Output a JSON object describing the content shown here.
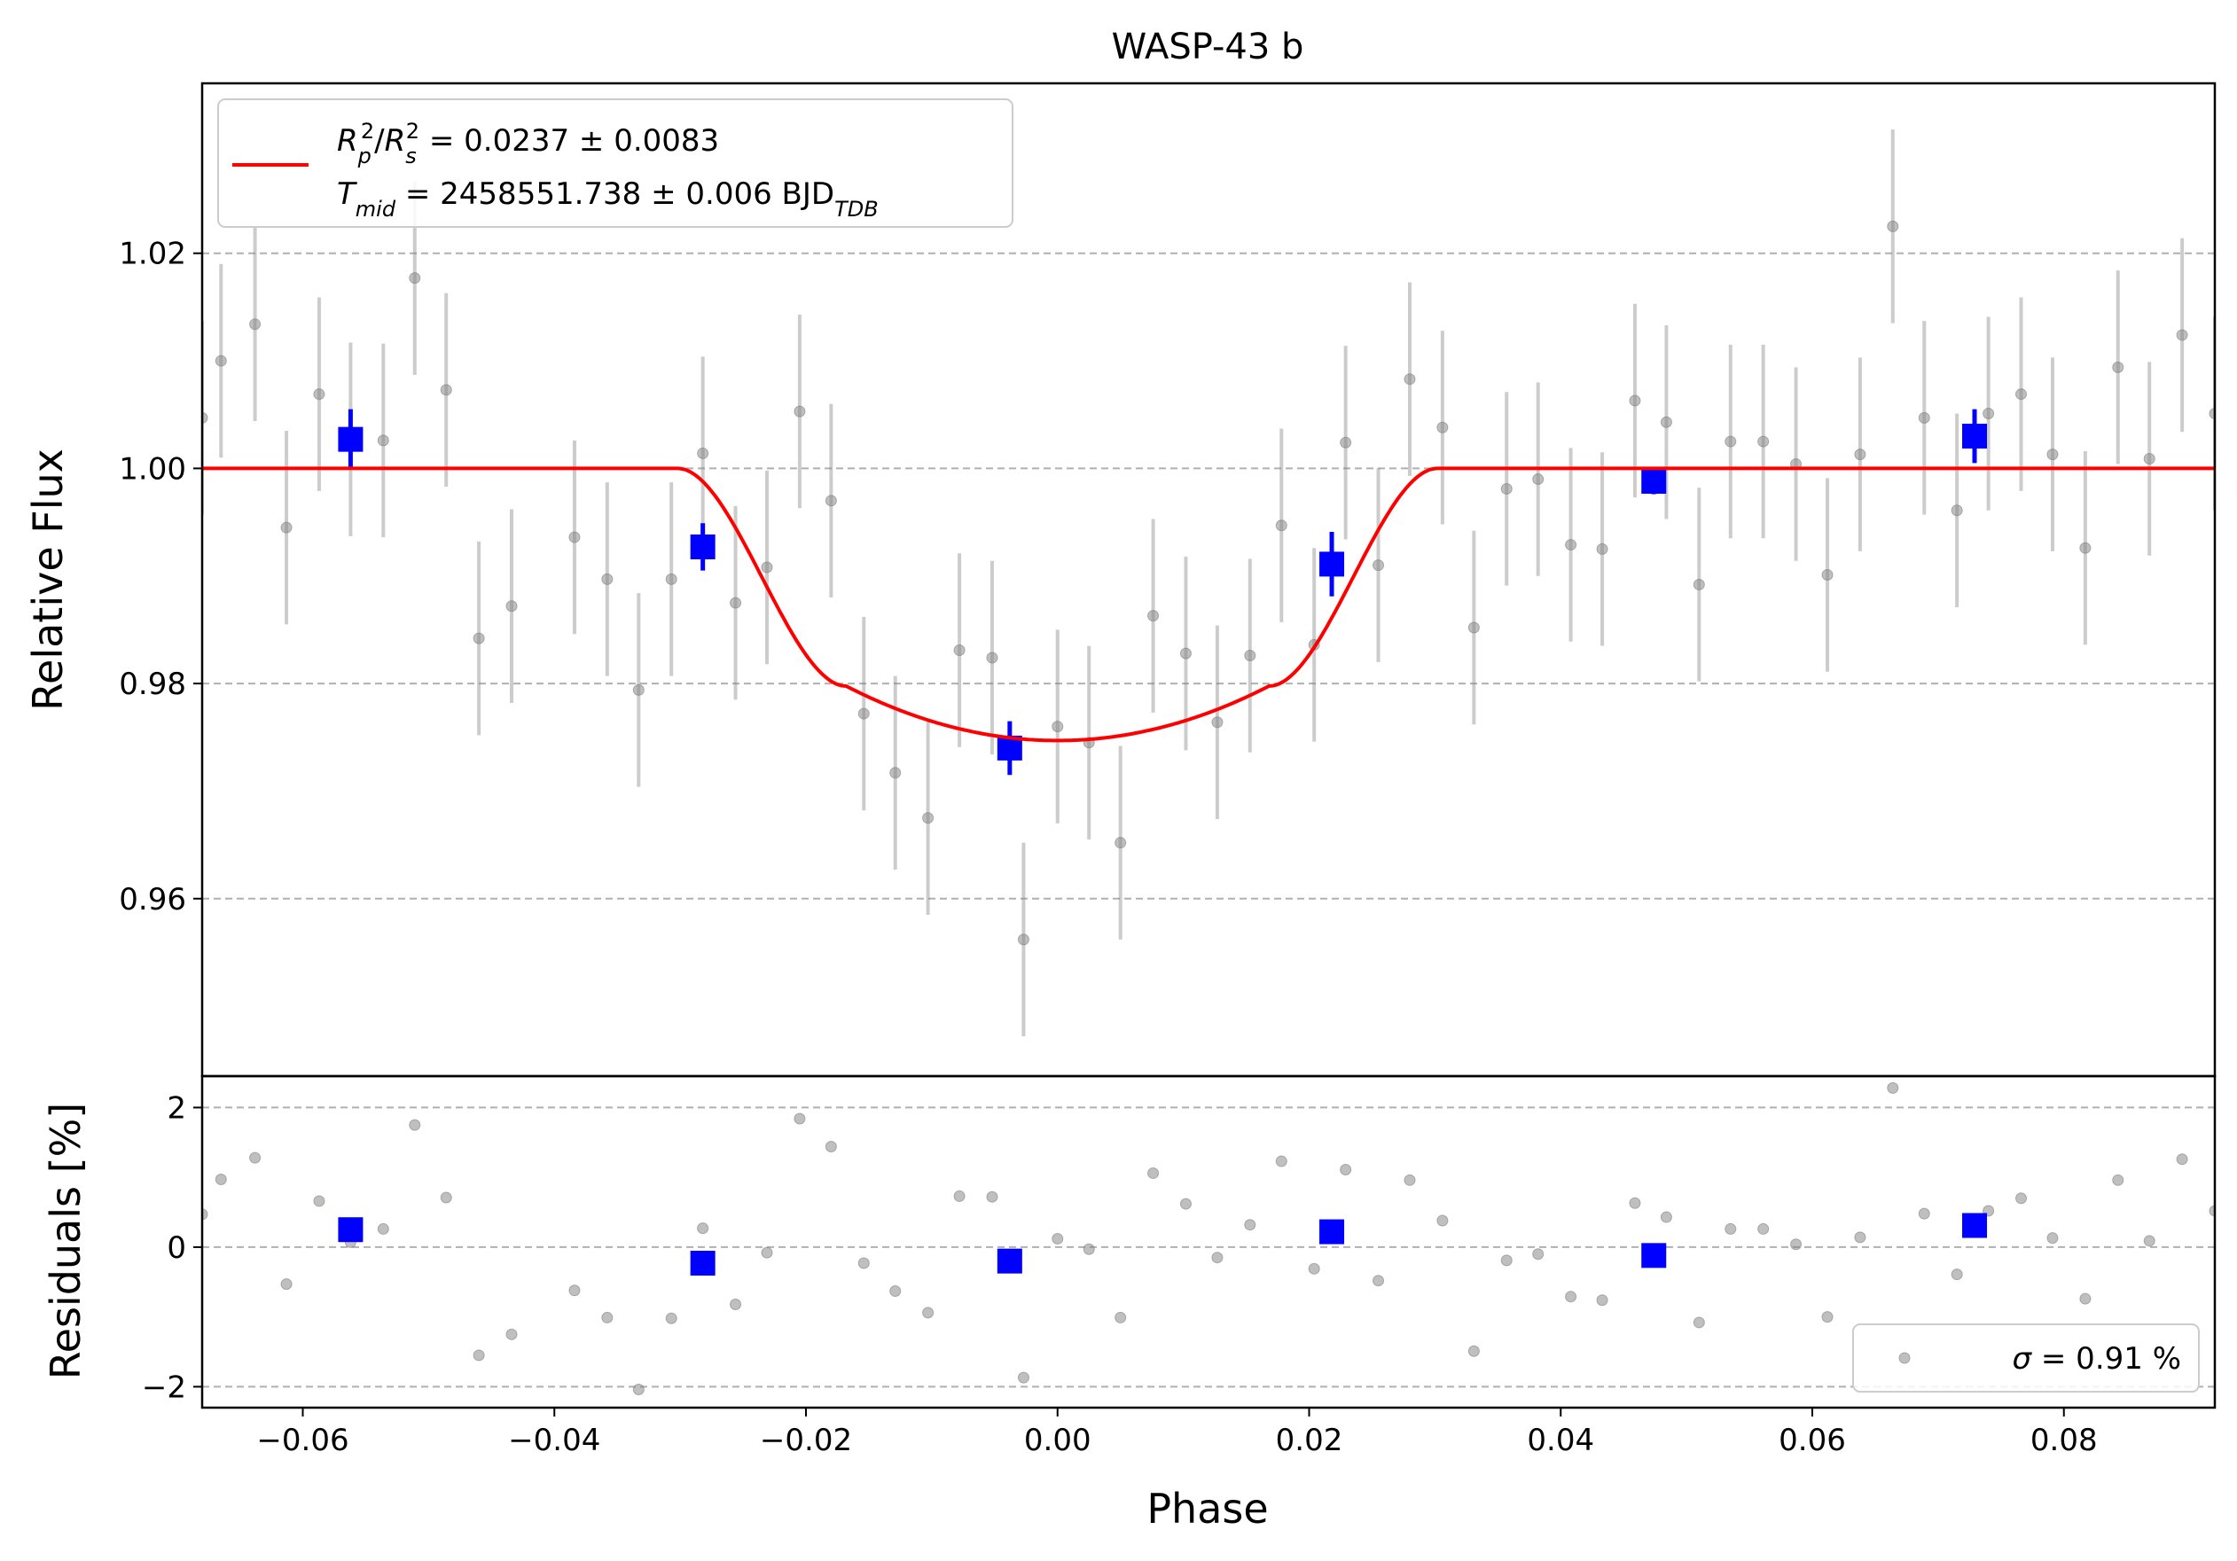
{
  "chart_data": {
    "type": "scatter",
    "title": "WASP-43 b",
    "xlabel": "Phase",
    "xlim": [
      -0.068,
      0.092
    ],
    "xticks": [
      -0.06,
      -0.04,
      -0.02,
      0.0,
      0.02,
      0.04,
      0.06,
      0.08
    ],
    "xtick_labels": [
      "−0.06",
      "−0.04",
      "−0.02",
      "0.00",
      "0.02",
      "0.04",
      "0.06",
      "0.08"
    ],
    "top_panel": {
      "ylabel": "Relative Flux",
      "ylim": [
        0.9435,
        1.0358
      ],
      "yticks": [
        0.96,
        0.98,
        1.0,
        1.02
      ],
      "ytick_labels": [
        "0.96",
        "0.98",
        "1.00",
        "1.02"
      ],
      "grid": "horizontal dashed",
      "data": {
        "color": "#808080",
        "points": [
          [
            -0.068,
            1.0047,
            0.009
          ],
          [
            -0.0665,
            1.01,
            0.009
          ],
          [
            -0.0638,
            1.0134,
            0.009
          ],
          [
            -0.0613,
            0.9945,
            0.009
          ],
          [
            -0.0587,
            1.0069,
            0.009
          ],
          [
            -0.0562,
            1.0027,
            0.009
          ],
          [
            -0.0536,
            1.0026,
            0.009
          ],
          [
            -0.0511,
            1.0177,
            0.009
          ],
          [
            -0.0486,
            1.0073,
            0.009
          ],
          [
            -0.046,
            0.9842,
            0.009
          ],
          [
            -0.0434,
            0.9872,
            0.009
          ],
          [
            -0.0384,
            0.9936,
            0.009
          ],
          [
            -0.0358,
            0.9897,
            0.009
          ],
          [
            -0.0333,
            0.9794,
            0.009
          ],
          [
            -0.0307,
            0.9897,
            0.009
          ],
          [
            -0.0282,
            1.0014,
            0.009
          ],
          [
            -0.0256,
            0.9875,
            0.009
          ],
          [
            -0.0231,
            0.9908,
            0.009
          ],
          [
            -0.0205,
            1.0053,
            0.009
          ],
          [
            -0.018,
            0.997,
            0.009
          ],
          [
            -0.0154,
            0.9772,
            0.009
          ],
          [
            -0.0129,
            0.9717,
            0.009
          ],
          [
            -0.0103,
            0.9675,
            0.009
          ],
          [
            -0.0078,
            0.9831,
            0.009
          ],
          [
            -0.0052,
            0.9824,
            0.009
          ],
          [
            -0.0027,
            0.9562,
            0.009
          ],
          [
            0.0,
            0.976,
            0.009
          ],
          [
            0.0025,
            0.9745,
            0.009
          ],
          [
            0.005,
            0.9652,
            0.009
          ],
          [
            0.0076,
            0.9863,
            0.009
          ],
          [
            0.0102,
            0.9828,
            0.009
          ],
          [
            0.0127,
            0.9764,
            0.009
          ],
          [
            0.0153,
            0.9826,
            0.009
          ],
          [
            0.0178,
            0.9947,
            0.009
          ],
          [
            0.0204,
            0.9836,
            0.009
          ],
          [
            0.0229,
            1.0024,
            0.009
          ],
          [
            0.0255,
            0.991,
            0.009
          ],
          [
            0.028,
            1.0083,
            0.009
          ],
          [
            0.0306,
            1.0038,
            0.009
          ],
          [
            0.0331,
            0.9852,
            0.009
          ],
          [
            0.0357,
            0.9981,
            0.009
          ],
          [
            0.0382,
            0.999,
            0.009
          ],
          [
            0.0408,
            0.9929,
            0.009
          ],
          [
            0.0433,
            0.9925,
            0.009
          ],
          [
            0.0459,
            1.0063,
            0.009
          ],
          [
            0.0484,
            1.0043,
            0.009
          ],
          [
            0.051,
            0.9892,
            0.009
          ],
          [
            0.0535,
            1.0025,
            0.009
          ],
          [
            0.0561,
            1.0025,
            0.009
          ],
          [
            0.0587,
            1.0004,
            0.009
          ],
          [
            0.0612,
            0.9901,
            0.009
          ],
          [
            0.0638,
            1.0013,
            0.009
          ],
          [
            0.0664,
            1.0225,
            0.009
          ],
          [
            0.0689,
            1.0047,
            0.009
          ],
          [
            0.0715,
            0.9961,
            0.009
          ],
          [
            0.074,
            1.0051,
            0.009
          ],
          [
            0.0766,
            1.0069,
            0.009
          ],
          [
            0.0791,
            1.0013,
            0.009
          ],
          [
            0.0817,
            0.9926,
            0.009
          ],
          [
            0.0843,
            1.0094,
            0.009
          ],
          [
            0.0868,
            1.0009,
            0.009
          ],
          [
            0.0894,
            1.0124,
            0.009
          ],
          [
            0.092,
            1.0051,
            0.009
          ]
        ]
      },
      "binned": {
        "color": "#0000ff",
        "points": [
          [
            -0.0562,
            1.0027,
            0.0028
          ],
          [
            -0.0282,
            0.9927,
            0.0022
          ],
          [
            -0.0038,
            0.974,
            0.0025
          ],
          [
            0.0218,
            0.9911,
            0.003
          ],
          [
            0.0474,
            0.9988,
            0.0012
          ],
          [
            0.0729,
            1.003,
            0.0025
          ]
        ]
      },
      "model": {
        "color": "#ff0000",
        "depth": 0.0253,
        "t1": -0.0302,
        "t2": -0.0168,
        "t3": 0.0168,
        "t4": 0.0302
      },
      "legend": {
        "position": "top-left",
        "line1": {
          "var": "R",
          "sub1": "p",
          "sup1": "2",
          "sep": "/",
          "var2": "R",
          "sub2": "s",
          "sup2": "2",
          "value": " = 0.0237 ± 0.0083"
        },
        "line2": {
          "var": "T",
          "sub": "mid",
          "value": " = 2458551.738 ± 0.006 BJD",
          "unit_sub": "TDB"
        }
      }
    },
    "bottom_panel": {
      "ylabel": "Residuals [%]",
      "ylim": [
        -2.3,
        2.45
      ],
      "yticks": [
        -2,
        0,
        2
      ],
      "ytick_labels": [
        "−2",
        "0",
        "2"
      ],
      "grid": "horizontal dashed",
      "residuals": [
        [
          -0.068,
          0.47
        ],
        [
          -0.0665,
          0.97
        ],
        [
          -0.0638,
          1.28
        ],
        [
          -0.0613,
          -0.53
        ],
        [
          -0.0587,
          0.66
        ],
        [
          -0.0562,
          0.07
        ],
        [
          -0.0536,
          0.26
        ],
        [
          -0.0511,
          1.75
        ],
        [
          -0.0486,
          0.71
        ],
        [
          -0.046,
          -1.55
        ],
        [
          -0.0434,
          -1.25
        ],
        [
          -0.0384,
          -0.62
        ],
        [
          -0.0358,
          -1.01
        ],
        [
          -0.0333,
          -2.04
        ],
        [
          -0.0307,
          -1.02
        ],
        [
          -0.0282,
          0.27
        ],
        [
          -0.0256,
          -0.82
        ],
        [
          -0.0231,
          -0.08
        ],
        [
          -0.0205,
          1.84
        ],
        [
          -0.018,
          1.44
        ],
        [
          -0.0154,
          -0.23
        ],
        [
          -0.0129,
          -0.63
        ],
        [
          -0.0103,
          -0.94
        ],
        [
          -0.0078,
          0.73
        ],
        [
          -0.0052,
          0.72
        ],
        [
          -0.0027,
          -1.87
        ],
        [
          0.0,
          0.12
        ],
        [
          0.0025,
          -0.03
        ],
        [
          0.005,
          -1.01
        ],
        [
          0.0076,
          1.06
        ],
        [
          0.0102,
          0.62
        ],
        [
          0.0127,
          -0.15
        ],
        [
          0.0153,
          0.32
        ],
        [
          0.0178,
          1.23
        ],
        [
          0.0204,
          -0.31
        ],
        [
          0.0229,
          1.11
        ],
        [
          0.0255,
          -0.48
        ],
        [
          0.028,
          0.96
        ],
        [
          0.0306,
          0.38
        ],
        [
          0.0331,
          -1.49
        ],
        [
          0.0357,
          -0.19
        ],
        [
          0.0382,
          -0.1
        ],
        [
          0.0408,
          -0.71
        ],
        [
          0.0433,
          -0.76
        ],
        [
          0.0459,
          0.63
        ],
        [
          0.0484,
          0.43
        ],
        [
          0.051,
          -1.08
        ],
        [
          0.0535,
          0.26
        ],
        [
          0.0561,
          0.26
        ],
        [
          0.0587,
          0.04
        ],
        [
          0.0612,
          -1.0
        ],
        [
          0.0638,
          0.14
        ],
        [
          0.0664,
          2.28
        ],
        [
          0.0689,
          0.48
        ],
        [
          0.0715,
          -0.39
        ],
        [
          0.074,
          0.52
        ],
        [
          0.0766,
          0.7
        ],
        [
          0.0791,
          0.13
        ],
        [
          0.0817,
          -0.74
        ],
        [
          0.0843,
          0.96
        ],
        [
          0.0868,
          0.09
        ],
        [
          0.0894,
          1.26
        ],
        [
          0.092,
          0.52
        ]
      ],
      "binned_residuals": [
        [
          -0.0562,
          0.25
        ],
        [
          -0.0282,
          -0.23
        ],
        [
          -0.0038,
          -0.2
        ],
        [
          0.0218,
          0.22
        ],
        [
          0.0474,
          -0.12
        ],
        [
          0.0729,
          0.31
        ]
      ],
      "legend": {
        "position": "bottom-right",
        "symbol": "σ",
        "text": " = 0.91 %"
      }
    }
  }
}
